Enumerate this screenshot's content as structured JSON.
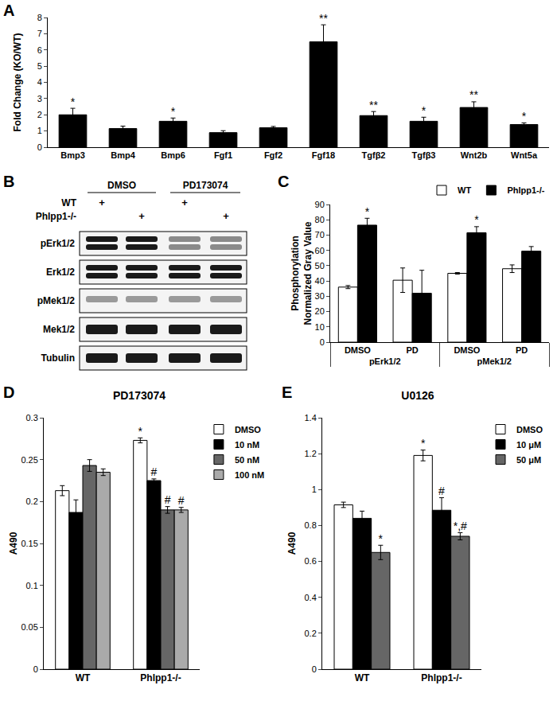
{
  "chart_data": [
    {
      "panel": "A",
      "type": "bar",
      "y_label": [
        "Fold Change (KO/WT)"
      ],
      "categories": [
        "Bmp3",
        "Bmp4",
        "Bmp6",
        "Fgf1",
        "Fgf2",
        "Fgf18",
        "Tgfβ2",
        "Tgfβ3",
        "Wnt2b",
        "Wnt5a"
      ],
      "values": [
        2.0,
        1.15,
        1.6,
        0.9,
        1.2,
        6.5,
        1.95,
        1.6,
        2.45,
        1.4
      ],
      "errors": [
        0.4,
        0.15,
        0.2,
        0.12,
        0.08,
        1.05,
        0.25,
        0.25,
        0.35,
        0.1
      ],
      "significance": [
        "*",
        null,
        "*",
        null,
        null,
        "**",
        "**",
        "*",
        "**",
        "*"
      ],
      "color": "#000000",
      "ylim": [
        0,
        8
      ],
      "yticks": [
        0,
        1,
        2,
        3,
        4,
        5,
        6,
        7,
        8
      ],
      "grid": false
    },
    {
      "panel": "C",
      "type": "bar",
      "y_label": [
        "Phosphorylation",
        "Normalized Gray Value"
      ],
      "groups": [
        "pErk1/2",
        "pErk1/2",
        "pMek1/2",
        "pMek1/2"
      ],
      "categories": [
        "DMSO",
        "PD",
        "DMSO",
        "PD"
      ],
      "series": [
        {
          "name": "WT",
          "color": "#ffffff",
          "values": [
            36,
            40.5,
            45,
            48
          ],
          "errors": [
            1,
            8,
            0.5,
            2.5
          ],
          "significance": [
            null,
            null,
            null,
            null
          ]
        },
        {
          "name": "Phlpp1-/-",
          "color": "#000000",
          "values": [
            76.5,
            32,
            71.5,
            59.5
          ],
          "errors": [
            4.5,
            15,
            4,
            3
          ],
          "significance": [
            "*",
            null,
            "*",
            null
          ]
        }
      ],
      "ylim": [
        0,
        90
      ],
      "yticks": [
        0,
        10,
        20,
        30,
        40,
        50,
        60,
        70,
        80,
        90
      ],
      "legend": "top",
      "grid": false
    },
    {
      "panel": "D",
      "type": "bar",
      "title": "PD173074",
      "y_label": [
        "A490"
      ],
      "categories": [
        "WT",
        "Phlpp1-/-"
      ],
      "series": [
        {
          "name": "DMSO",
          "color": "#ffffff",
          "values": [
            0.213,
            0.273
          ],
          "errors": [
            0.006,
            0.003
          ],
          "significance": [
            null,
            "*"
          ]
        },
        {
          "name": "10 nM",
          "color": "#000000",
          "values": [
            0.187,
            0.225
          ],
          "errors": [
            0.015,
            0.002
          ],
          "significance": [
            null,
            "#"
          ]
        },
        {
          "name": "50 nM",
          "color": "#666666",
          "values": [
            0.243,
            0.19
          ],
          "errors": [
            0.007,
            0.004
          ],
          "significance": [
            null,
            "#"
          ]
        },
        {
          "name": "100 nM",
          "color": "#aaaaaa",
          "values": [
            0.235,
            0.19
          ],
          "errors": [
            0.004,
            0.003
          ],
          "significance": [
            null,
            "#"
          ]
        }
      ],
      "ylim": [
        0,
        0.3
      ],
      "yticks": [
        0,
        0.05,
        0.1,
        0.15,
        0.2,
        0.25,
        0.3
      ],
      "legend": "right",
      "grid": false
    },
    {
      "panel": "E",
      "type": "bar",
      "title": "U0126",
      "y_label": [
        "A490"
      ],
      "categories": [
        "WT",
        "Phlpp1-/-"
      ],
      "series": [
        {
          "name": "DMSO",
          "color": "#ffffff",
          "values": [
            0.915,
            1.19
          ],
          "errors": [
            0.015,
            0.03
          ],
          "significance": [
            null,
            "*"
          ]
        },
        {
          "name": "10 μM",
          "color": "#000000",
          "values": [
            0.84,
            0.885
          ],
          "errors": [
            0.04,
            0.07
          ],
          "significance": [
            null,
            "#"
          ]
        },
        {
          "name": "50 μM",
          "color": "#666666",
          "values": [
            0.65,
            0.74
          ],
          "errors": [
            0.04,
            0.02
          ],
          "significance": [
            "*",
            "*,#"
          ]
        }
      ],
      "ylim": [
        0,
        1.4
      ],
      "yticks": [
        0,
        0.2,
        0.4,
        0.6,
        0.8,
        1,
        1.2,
        1.4
      ],
      "legend": "right",
      "grid": false
    }
  ],
  "blot": {
    "panel": "B",
    "conditions": [
      "DMSO",
      "PD173074"
    ],
    "rows": [
      {
        "label": "WT",
        "marks": [
          "+",
          null,
          "+",
          null
        ]
      },
      {
        "label": "Phlpp1-/-",
        "marks": [
          null,
          "+",
          null,
          "+"
        ]
      }
    ],
    "bands": [
      "pErk1/2",
      "Erk1/2",
      "pMek1/2",
      "Mek1/2",
      "Tubulin"
    ]
  }
}
